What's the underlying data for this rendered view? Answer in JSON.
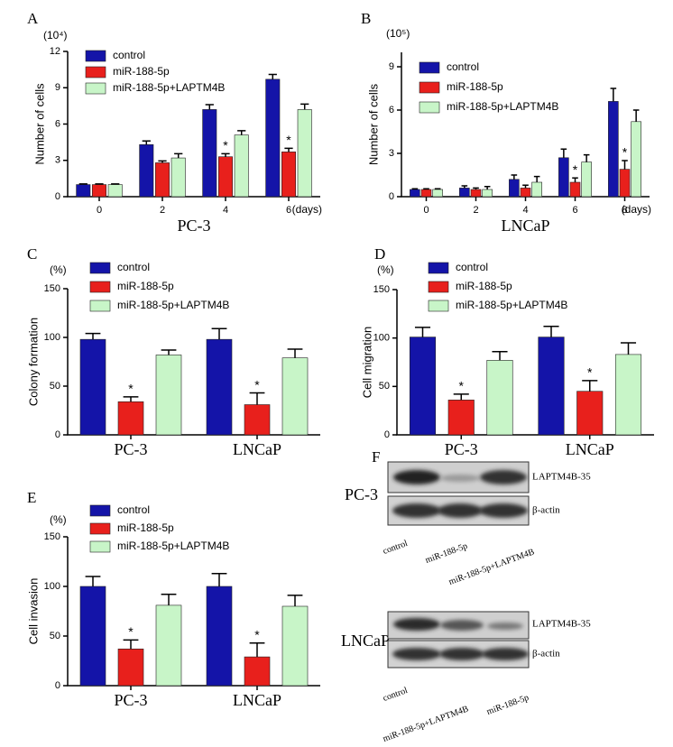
{
  "chart_data": [
    {
      "type": "bar",
      "panel": "A",
      "unit": "(10⁴)",
      "ylabel": "Number of cells",
      "xlabel": "PC-3",
      "xunit": "(days)",
      "categories": [
        "0",
        "2",
        "4",
        "6"
      ],
      "ylim": [
        0,
        12
      ],
      "yticks": [
        0,
        3,
        6,
        9,
        12
      ],
      "series": [
        {
          "name": "control",
          "color": "#1414a8",
          "values": [
            1,
            4.3,
            7.2,
            9.7
          ],
          "errors": [
            0.05,
            0.3,
            0.4,
            0.4
          ],
          "significance": [
            null,
            null,
            null,
            null
          ]
        },
        {
          "name": "miR-188-5p",
          "color": "#e8201c",
          "values": [
            1,
            2.8,
            3.3,
            3.7
          ],
          "errors": [
            0.05,
            0.15,
            0.25,
            0.3
          ],
          "significance": [
            null,
            null,
            "*",
            "*"
          ]
        },
        {
          "name": "miR-188-5p+LAPTM4B",
          "color": "#c8f5c8",
          "values": [
            1,
            3.2,
            5.1,
            7.2
          ],
          "errors": [
            0.05,
            0.35,
            0.35,
            0.45
          ],
          "significance": [
            null,
            null,
            null,
            null
          ]
        }
      ]
    },
    {
      "type": "bar",
      "panel": "B",
      "unit": "(10⁵)",
      "ylabel": "Number of cells",
      "xlabel": "LNCaP",
      "xunit": "(days)",
      "categories": [
        "0",
        "2",
        "4",
        "6",
        "8"
      ],
      "ylim": [
        0,
        10
      ],
      "yticks": [
        0,
        3,
        6,
        9
      ],
      "series": [
        {
          "name": "control",
          "color": "#1414a8",
          "values": [
            0.5,
            0.6,
            1.2,
            2.7,
            6.6
          ],
          "errors": [
            0.05,
            0.15,
            0.3,
            0.6,
            0.9
          ],
          "significance": [
            null,
            null,
            null,
            null,
            null
          ]
        },
        {
          "name": "miR-188-5p",
          "color": "#e8201c",
          "values": [
            0.5,
            0.5,
            0.6,
            1.0,
            1.9
          ],
          "errors": [
            0.05,
            0.1,
            0.2,
            0.3,
            0.6
          ],
          "significance": [
            null,
            null,
            null,
            "*",
            "*"
          ]
        },
        {
          "name": "miR-188-5p+LAPTM4B",
          "color": "#c8f5c8",
          "values": [
            0.5,
            0.5,
            1.0,
            2.4,
            5.2
          ],
          "errors": [
            0.05,
            0.2,
            0.4,
            0.5,
            0.8
          ],
          "significance": [
            null,
            null,
            null,
            null,
            null
          ]
        }
      ]
    },
    {
      "type": "bar",
      "panel": "C",
      "unit": "(%)",
      "ylabel": "Colony formation",
      "categories": [
        "PC-3",
        "LNCaP"
      ],
      "ylim": [
        0,
        150
      ],
      "yticks": [
        0,
        50,
        100,
        150
      ],
      "series": [
        {
          "name": "control",
          "color": "#1414a8",
          "values": [
            98,
            98
          ],
          "errors": [
            6,
            11
          ],
          "significance": [
            null,
            null
          ]
        },
        {
          "name": "miR-188-5p",
          "color": "#e8201c",
          "values": [
            34,
            31
          ],
          "errors": [
            5,
            12
          ],
          "significance": [
            "*",
            "*"
          ]
        },
        {
          "name": "miR-188-5p+LAPTM4B",
          "color": "#c8f5c8",
          "values": [
            82,
            79
          ],
          "errors": [
            5,
            9
          ],
          "significance": [
            null,
            null
          ]
        }
      ]
    },
    {
      "type": "bar",
      "panel": "D",
      "unit": "(%)",
      "ylabel": "Cell migration",
      "categories": [
        "PC-3",
        "LNCaP"
      ],
      "ylim": [
        0,
        150
      ],
      "yticks": [
        0,
        50,
        100,
        150
      ],
      "series": [
        {
          "name": "control",
          "color": "#1414a8",
          "values": [
            101,
            101
          ],
          "errors": [
            10,
            11
          ],
          "significance": [
            null,
            null
          ]
        },
        {
          "name": "miR-188-5p",
          "color": "#e8201c",
          "values": [
            36,
            45
          ],
          "errors": [
            6,
            11
          ],
          "significance": [
            "*",
            "*"
          ]
        },
        {
          "name": "miR-188-5p+LAPTM4B",
          "color": "#c8f5c8",
          "values": [
            77,
            83
          ],
          "errors": [
            9,
            12
          ],
          "significance": [
            null,
            null
          ]
        }
      ]
    },
    {
      "type": "bar",
      "panel": "E",
      "unit": "(%)",
      "ylabel": "Cell invasion",
      "categories": [
        "PC-3",
        "LNCaP"
      ],
      "ylim": [
        0,
        150
      ],
      "yticks": [
        0,
        50,
        100,
        150
      ],
      "series": [
        {
          "name": "control",
          "color": "#1414a8",
          "values": [
            100,
            100
          ],
          "errors": [
            10,
            13
          ],
          "significance": [
            null,
            null
          ]
        },
        {
          "name": "miR-188-5p",
          "color": "#e8201c",
          "values": [
            37,
            29
          ],
          "errors": [
            9,
            14
          ],
          "significance": [
            "*",
            "*"
          ]
        },
        {
          "name": "miR-188-5p+LAPTM4B",
          "color": "#c8f5c8",
          "values": [
            81,
            80
          ],
          "errors": [
            11,
            11
          ],
          "significance": [
            null,
            null
          ]
        }
      ]
    }
  ],
  "blot": {
    "panel": "F",
    "groups": [
      {
        "cell_line": "PC-3",
        "bands": [
          "LAPTM4B-35",
          "β-actin"
        ],
        "lanes": [
          "control",
          "miR-188-5p",
          "miR-188-5p+LAPTM4B"
        ]
      },
      {
        "cell_line": "LNCaP",
        "bands": [
          "LAPTM4B-35",
          "β-actin"
        ],
        "lanes": [
          "control",
          "miR-188-5p+LAPTM4B",
          "miR-188-5p"
        ]
      }
    ]
  }
}
